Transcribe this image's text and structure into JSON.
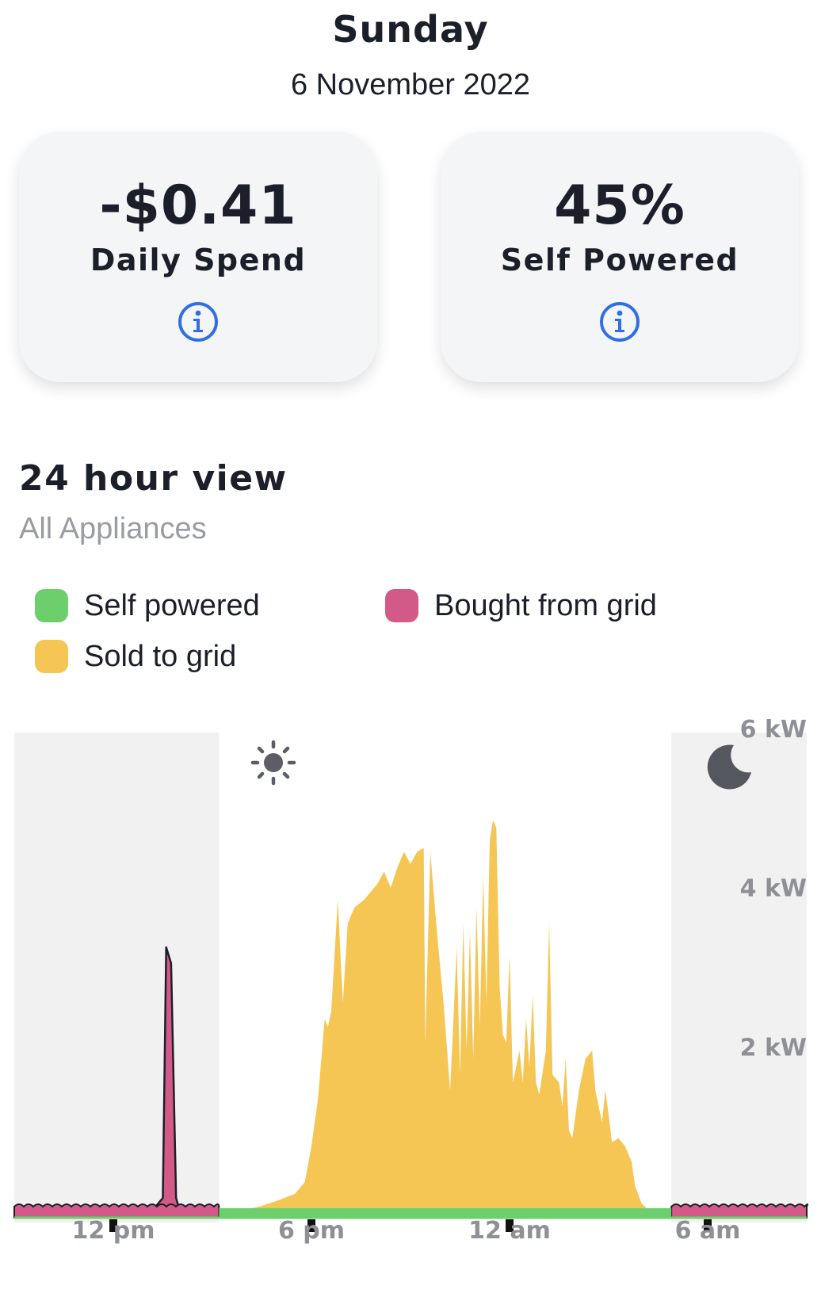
{
  "header": {
    "day": "Sunday",
    "date": "6 November 2022"
  },
  "cards": [
    {
      "value": "-$0.41",
      "label": "Daily Spend",
      "icon": "info-icon"
    },
    {
      "value": "45%",
      "label": "Self Powered",
      "icon": "info-icon"
    }
  ],
  "section": {
    "title": "24 hour view",
    "subtitle": "All Appliances"
  },
  "legend": [
    {
      "label": "Self powered",
      "color": "#6dcf6b"
    },
    {
      "label": "Bought from grid",
      "color": "#d35a88"
    },
    {
      "label": "Sold to grid",
      "color": "#f5c654"
    }
  ],
  "icons": {
    "day": "sun-icon",
    "night": "moon-icon"
  },
  "chart_data": {
    "type": "area",
    "x_unit": "hours since 9 am",
    "xlim": [
      0,
      24
    ],
    "ylim": [
      0,
      6
    ],
    "xticks": [
      {
        "x": 3,
        "label": "12 pm"
      },
      {
        "x": 9,
        "label": "6 pm"
      },
      {
        "x": 15,
        "label": "12 am"
      },
      {
        "x": 21,
        "label": "6 am"
      }
    ],
    "yticks": [
      {
        "y": 2,
        "label": "2 kW"
      },
      {
        "y": 4,
        "label": "4 kW"
      },
      {
        "y": 6,
        "label": "6 kW"
      }
    ],
    "night_bands": [
      [
        0,
        6.2
      ],
      [
        19.9,
        24
      ]
    ],
    "colors": {
      "self": "#6dcf6b",
      "bought": "#d35a88",
      "sold": "#f5c654",
      "night": "#f1f1f2"
    },
    "series": [
      {
        "name": "Sold to grid",
        "points": [
          [
            7,
            0
          ],
          [
            7.5,
            0.05
          ],
          [
            8,
            0.12
          ],
          [
            8.5,
            0.2
          ],
          [
            8.8,
            0.35
          ],
          [
            9.0,
            0.8
          ],
          [
            9.2,
            1.4
          ],
          [
            9.4,
            2.4
          ],
          [
            9.5,
            2.3
          ],
          [
            9.6,
            2.5
          ],
          [
            9.8,
            3.9
          ],
          [
            9.95,
            2.6
          ],
          [
            10.1,
            3.6
          ],
          [
            10.3,
            3.8
          ],
          [
            10.6,
            3.9
          ],
          [
            10.8,
            4.0
          ],
          [
            11.0,
            4.1
          ],
          [
            11.2,
            4.25
          ],
          [
            11.4,
            4.05
          ],
          [
            11.6,
            4.3
          ],
          [
            11.8,
            4.5
          ],
          [
            12.0,
            4.35
          ],
          [
            12.2,
            4.5
          ],
          [
            12.4,
            4.55
          ],
          [
            12.45,
            2.1
          ],
          [
            12.6,
            4.5
          ],
          [
            12.8,
            3.5
          ],
          [
            13.0,
            2.6
          ],
          [
            13.2,
            1.5
          ],
          [
            13.3,
            2.4
          ],
          [
            13.4,
            3.3
          ],
          [
            13.5,
            1.7
          ],
          [
            13.6,
            3.6
          ],
          [
            13.7,
            2.0
          ],
          [
            13.8,
            3.5
          ],
          [
            13.9,
            1.9
          ],
          [
            14.0,
            3.8
          ],
          [
            14.1,
            2.3
          ],
          [
            14.2,
            4.2
          ],
          [
            14.3,
            2.6
          ],
          [
            14.4,
            4.65
          ],
          [
            14.5,
            4.9
          ],
          [
            14.6,
            4.8
          ],
          [
            14.7,
            2.8
          ],
          [
            14.8,
            2.2
          ],
          [
            14.9,
            2.1
          ],
          [
            15.0,
            3.2
          ],
          [
            15.1,
            1.6
          ],
          [
            15.3,
            2.0
          ],
          [
            15.4,
            1.6
          ],
          [
            15.5,
            2.4
          ],
          [
            15.6,
            1.8
          ],
          [
            15.7,
            2.7
          ],
          [
            15.8,
            1.6
          ],
          [
            15.9,
            1.45
          ],
          [
            16.1,
            2.0
          ],
          [
            16.2,
            3.6
          ],
          [
            16.3,
            1.7
          ],
          [
            16.5,
            1.6
          ],
          [
            16.6,
            1.3
          ],
          [
            16.7,
            1.9
          ],
          [
            16.8,
            1.0
          ],
          [
            16.9,
            0.9
          ],
          [
            17.1,
            1.5
          ],
          [
            17.3,
            1.9
          ],
          [
            17.5,
            2.0
          ],
          [
            17.6,
            1.5
          ],
          [
            17.8,
            1.1
          ],
          [
            17.9,
            1.5
          ],
          [
            18.0,
            1.2
          ],
          [
            18.1,
            0.85
          ],
          [
            18.3,
            0.9
          ],
          [
            18.5,
            0.8
          ],
          [
            18.7,
            0.6
          ],
          [
            18.8,
            0.3
          ],
          [
            19.0,
            0.08
          ],
          [
            19.2,
            0
          ]
        ]
      },
      {
        "name": "Bought from grid",
        "points": [
          [
            4.2,
            0
          ],
          [
            4.5,
            0.15
          ],
          [
            4.6,
            3.3
          ],
          [
            4.75,
            3.1
          ],
          [
            4.9,
            0.15
          ],
          [
            5.0,
            0
          ]
        ]
      }
    ]
  }
}
